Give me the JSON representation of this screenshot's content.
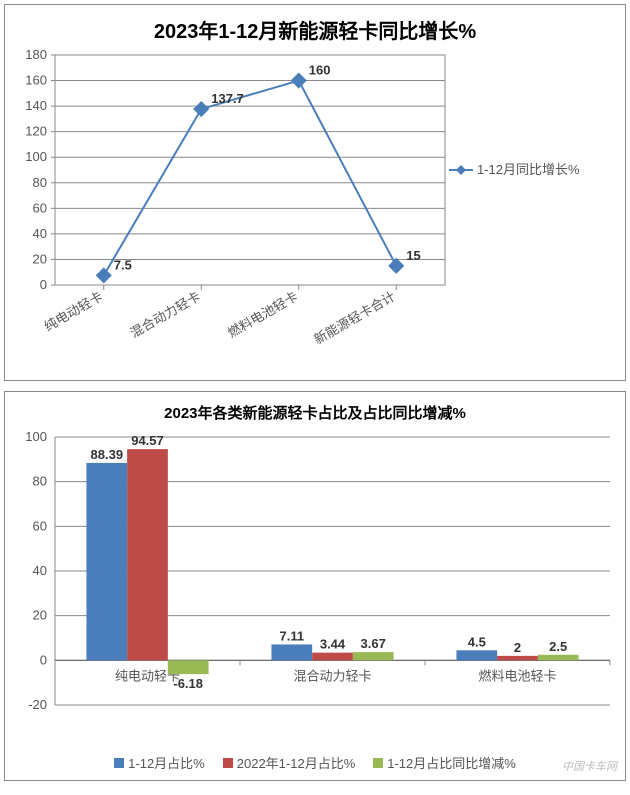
{
  "chart1": {
    "type": "line",
    "title": "2023年1-12月新能源轻卡同比增长%",
    "title_fontsize": 20,
    "categories": [
      "纯电动轻卡",
      "混合动力轻卡",
      "燃料电池轻卡",
      "新能源轻卡合计"
    ],
    "values": [
      7.5,
      137.7,
      160,
      15
    ],
    "value_labels": [
      "7.5",
      "137.7",
      "160",
      "15"
    ],
    "line_color": "#4a7ebb",
    "marker": "diamond",
    "marker_size": 7,
    "ylim": [
      0,
      180
    ],
    "ytick_step": 20,
    "grid_color": "#888888",
    "plot_bg": "#ffffff",
    "label_rotation": -30,
    "legend": {
      "label": "1-12月同比增长%",
      "color": "#4a7ebb",
      "marker": "diamond",
      "position": "right-middle"
    }
  },
  "chart2": {
    "type": "bar",
    "title": "2023年各类新能源轻卡占比及占比同比增减%",
    "title_fontsize": 15,
    "categories": [
      "纯电动轻卡",
      "混合动力轻卡",
      "燃料电池轻卡"
    ],
    "series": [
      {
        "name": "1-12月占比%",
        "color": "#4a7ebb",
        "values": [
          88.39,
          7.11,
          4.5
        ]
      },
      {
        "name": "2022年1-12月占比%",
        "color": "#be4b48",
        "values": [
          94.57,
          3.44,
          2
        ]
      },
      {
        "name": "1-12月占比同比增减%",
        "color": "#98b954",
        "values": [
          -6.18,
          3.67,
          2.5
        ]
      }
    ],
    "value_labels": [
      [
        "88.39",
        "7.11",
        "4.5"
      ],
      [
        "94.57",
        "3.44",
        "2"
      ],
      [
        "-6.18",
        "3.67",
        "2.5"
      ]
    ],
    "ylim": [
      -20,
      100
    ],
    "ytick_step": 20,
    "grid_color": "#888888",
    "plot_bg": "#ffffff",
    "bar_group_gap": 0.2,
    "bar_width": 0.22,
    "legend_position": "bottom"
  },
  "watermark": "中国卡车网"
}
